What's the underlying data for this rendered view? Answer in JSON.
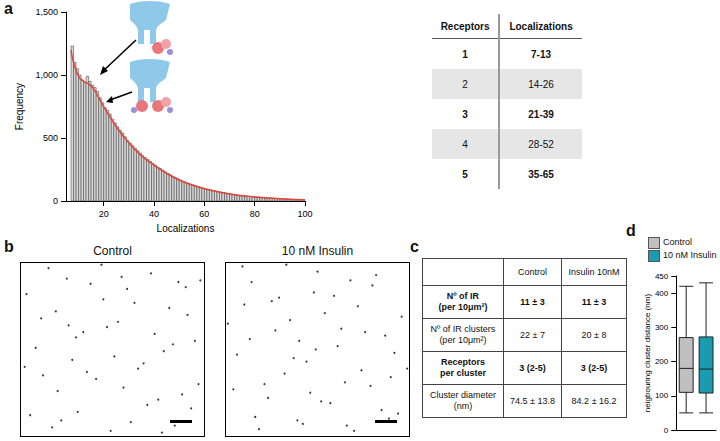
{
  "panel_labels": [
    "a",
    "b",
    "c",
    "d"
  ],
  "chart_data": [
    {
      "type": "histogram",
      "xlabel": "Localizations",
      "ylabel": "Frequency",
      "color": "#d9d9d9",
      "bins": [
        7,
        8,
        9,
        10,
        11,
        12,
        13,
        14,
        15,
        16,
        17,
        18,
        19,
        20,
        21,
        22,
        23,
        24,
        25,
        26,
        27,
        28,
        29,
        30,
        31,
        32,
        33,
        34,
        35,
        36,
        37,
        38,
        39,
        40,
        41,
        42,
        43,
        44,
        45,
        46,
        47,
        48,
        49,
        50,
        51,
        52,
        53,
        54,
        55,
        56,
        57,
        58,
        59,
        60,
        61,
        62,
        63,
        64,
        65,
        66,
        67,
        68,
        69,
        70,
        71,
        72,
        73,
        74,
        75,
        76,
        77,
        78,
        79,
        80,
        81,
        82,
        83,
        84,
        85,
        86,
        87,
        88,
        89,
        90,
        91,
        92,
        93,
        94,
        95,
        96,
        97,
        98,
        99,
        100
      ],
      "counts": [
        1230,
        1100,
        1050,
        1000,
        960,
        940,
        990,
        950,
        920,
        900,
        870,
        820,
        780,
        740,
        720,
        690,
        650,
        620,
        590,
        560,
        540,
        510,
        480,
        460,
        440,
        420,
        400,
        380,
        360,
        345,
        330,
        315,
        300,
        285,
        270,
        258,
        245,
        232,
        220,
        208,
        197,
        186,
        176,
        167,
        158,
        150,
        142,
        135,
        128,
        121,
        115,
        109,
        103,
        98,
        93,
        88,
        83,
        79,
        75,
        71,
        67,
        64,
        60,
        57,
        54,
        51,
        48,
        46,
        43,
        41,
        39,
        37,
        35,
        33,
        31,
        30,
        28,
        26,
        25,
        24,
        22,
        21,
        20,
        19,
        18,
        17,
        16,
        15,
        14,
        13,
        12,
        12,
        11
      ],
      "fit": {
        "color": "#e0443a",
        "x": [
          7,
          8,
          10,
          12,
          14,
          16,
          18,
          20,
          25,
          30,
          35,
          40,
          45,
          50,
          55,
          60,
          70,
          80,
          90,
          100
        ],
        "y": [
          1200,
          1100,
          990,
          950,
          930,
          890,
          820,
          750,
          590,
          460,
          360,
          285,
          220,
          167,
          128,
          98,
          57,
          33,
          19,
          10
        ]
      },
      "xlim": [
        5,
        100
      ],
      "xticks": [
        20,
        40,
        60,
        80,
        100
      ],
      "ylim": [
        0,
        1500
      ],
      "yticks": [
        0,
        500,
        1000,
        1500
      ],
      "grid": false
    },
    {
      "type": "scatter",
      "title": "Control",
      "color": "#000000",
      "tick_labels": false,
      "xlim": [
        0,
        10
      ],
      "ylim": [
        0,
        10
      ],
      "x": [
        0.3,
        1.2,
        2.5,
        3.1,
        4.7,
        5.6,
        6.2,
        7.8,
        8.4,
        9.5,
        0.8,
        1.9,
        2.2,
        3.8,
        4.1,
        5.3,
        6.9,
        7.1,
        8.8,
        9.1,
        0.5,
        1.5,
        2.8,
        3.4,
        4.9,
        5.8,
        6.4,
        7.5,
        8.1,
        9.7,
        1.1,
        2.0,
        3.0,
        4.4,
        5.1,
        6.0,
        7.3,
        8.6,
        9.3,
        0.2,
        1.7,
        2.6,
        3.6,
        4.5,
        5.5,
        6.7,
        7.7,
        8.3,
        9.0,
        9.8
      ],
      "y": [
        8.2,
        3.5,
        9.1,
        1.4,
        6.3,
        2.8,
        7.7,
        4.9,
        0.6,
        5.5,
        5.1,
        7.2,
        0.9,
        8.8,
        3.3,
        6.6,
        1.8,
        9.4,
        2.4,
        7.0,
        1.2,
        9.7,
        4.4,
        6.0,
        0.3,
        8.5,
        3.9,
        2.1,
        7.4,
        3.0,
        6.8,
        2.6,
        5.7,
        9.9,
        4.6,
        0.8,
        5.9,
        8.9,
        1.6,
        4.0,
        0.5,
        6.4,
        3.7,
        7.9,
        9.2,
        4.2,
        0.2,
        5.3,
        8.6,
        9.0
      ]
    },
    {
      "type": "scatter",
      "title": "10 nM Insulin",
      "color": "#000000",
      "tick_labels": false,
      "xlim": [
        0,
        10
      ],
      "ylim": [
        0,
        10
      ],
      "x": [
        0.6,
        1.4,
        2.3,
        3.5,
        4.2,
        5.0,
        6.5,
        7.2,
        8.7,
        9.4,
        0.9,
        1.8,
        2.7,
        3.2,
        4.8,
        5.7,
        6.1,
        7.9,
        8.2,
        9.6,
        0.4,
        1.3,
        2.9,
        3.9,
        4.4,
        5.4,
        6.8,
        7.4,
        8.5,
        9.2,
        1.0,
        2.1,
        3.3,
        4.0,
        5.2,
        6.3,
        7.0,
        8.0,
        9.0,
        0.1,
        1.6,
        2.5,
        3.7,
        4.6,
        5.9,
        6.6,
        7.6,
        8.9,
        9.9,
        4.9
      ],
      "y": [
        4.7,
        8.9,
        2.2,
        6.7,
        0.7,
        9.5,
        3.1,
        7.5,
        5.8,
        1.3,
        9.8,
        0.4,
        6.1,
        3.6,
        8.3,
        1.9,
        5.2,
        2.9,
        9.3,
        6.9,
        2.7,
        5.6,
        8.0,
        0.9,
        4.3,
        7.1,
        9.0,
        3.8,
        1.5,
        4.8,
        7.6,
        3.0,
        9.9,
        5.5,
        2.0,
        6.2,
        0.3,
        8.7,
        3.4,
        6.5,
        1.1,
        7.8,
        4.5,
        2.5,
        8.1,
        0.6,
        6.0,
        1.0,
        3.9,
        5.0
      ]
    },
    {
      "type": "boxplot",
      "ylabel": "neigbouring cluster distance (nm)",
      "legend": "top",
      "ylim": [
        0,
        450
      ],
      "yticks": [
        0,
        100,
        200,
        300,
        400
      ],
      "tick_labels": "y",
      "series": [
        {
          "name": "Control",
          "color": "#c0c0c0",
          "values": [
            50,
            110,
            180,
            270,
            420
          ]
        },
        {
          "name": "10 nM Insulin",
          "color": "#1a9cb0",
          "values": [
            50,
            108,
            178,
            272,
            430
          ]
        }
      ]
    }
  ],
  "tables": {
    "receptors": {
      "header": [
        "Receptors",
        "Localizations"
      ],
      "rows": [
        [
          "1",
          "7-13"
        ],
        [
          "2",
          "14-26"
        ],
        [
          "3",
          "21-39"
        ],
        [
          "4",
          "28-52"
        ],
        [
          "5",
          "35-65"
        ]
      ],
      "bold_rows": [
        0,
        2,
        4
      ]
    },
    "clusters": {
      "header": [
        "Control",
        "Insulin 10nM"
      ],
      "rows": [
        [
          "Nº of IR\n(per 10μm²)",
          "11 ± 3",
          "11 ± 3"
        ],
        [
          "Nº of IR clusters\n(per 10μm²)",
          "22 ± 7",
          "20 ± 8"
        ],
        [
          "Receptors\nper cluster",
          "3 (2-5)",
          "3 (2-5)"
        ],
        [
          "Cluster diameter\n(nm)",
          "74.5 ± 13.8",
          "84.2 ± 16.2"
        ]
      ],
      "bold_rows": [
        0,
        2
      ]
    }
  }
}
